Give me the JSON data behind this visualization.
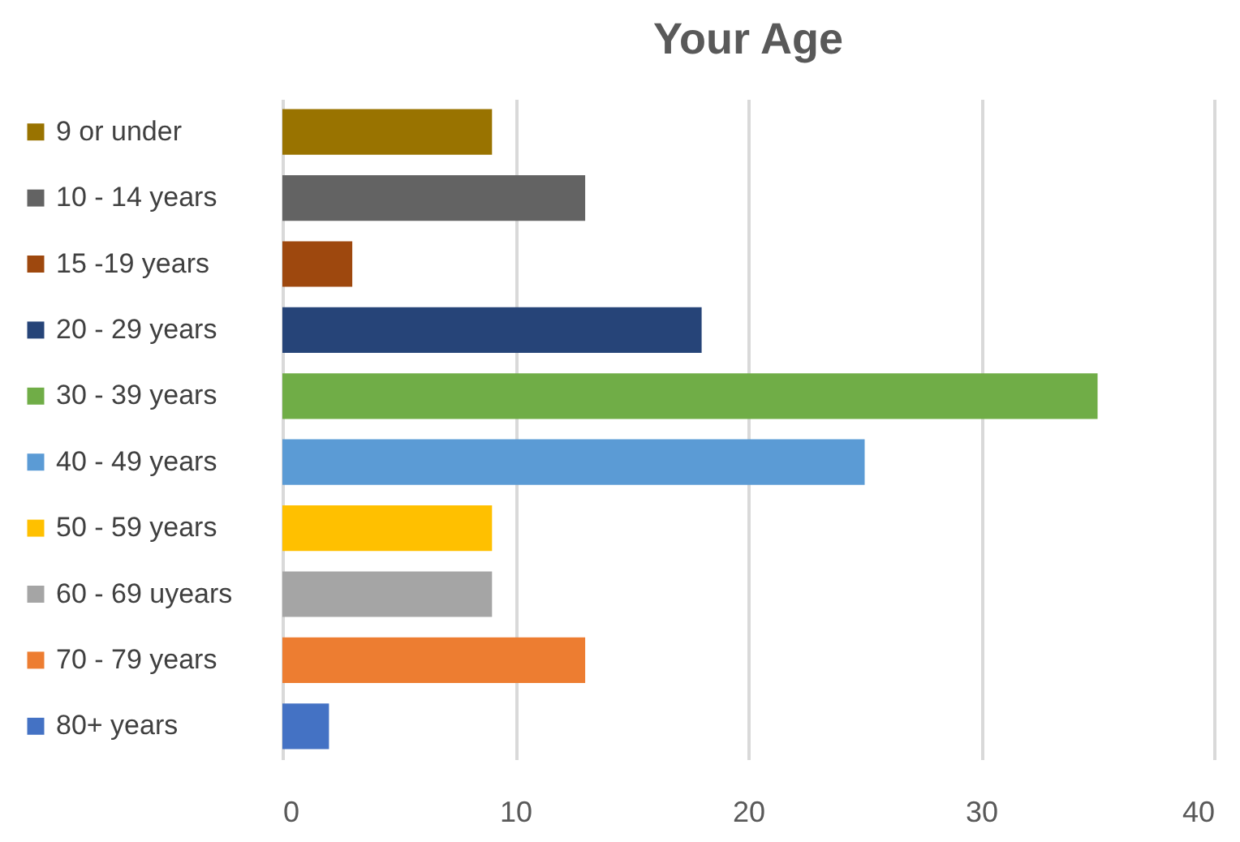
{
  "chart_data": {
    "type": "bar",
    "orientation": "horizontal",
    "title": "Your Age",
    "categories": [
      "9 or under",
      "10 - 14 years",
      "15 -19 years",
      "20 - 29 years",
      "30 - 39 years",
      "40 - 49 years",
      "50 - 59 years",
      "60 - 69 uyears",
      "70 - 79 years",
      "80+ years"
    ],
    "values": [
      9,
      13,
      3,
      18,
      35,
      25,
      9,
      9,
      13,
      2
    ],
    "colors": [
      "#997300",
      "#636363",
      "#9e480e",
      "#264478",
      "#70ad47",
      "#5b9bd5",
      "#ffc000",
      "#a5a5a5",
      "#ed7d31",
      "#4472c4"
    ],
    "xlim": [
      0,
      40
    ],
    "xticks": [
      0,
      10,
      20,
      30,
      40
    ],
    "grid": "x"
  }
}
